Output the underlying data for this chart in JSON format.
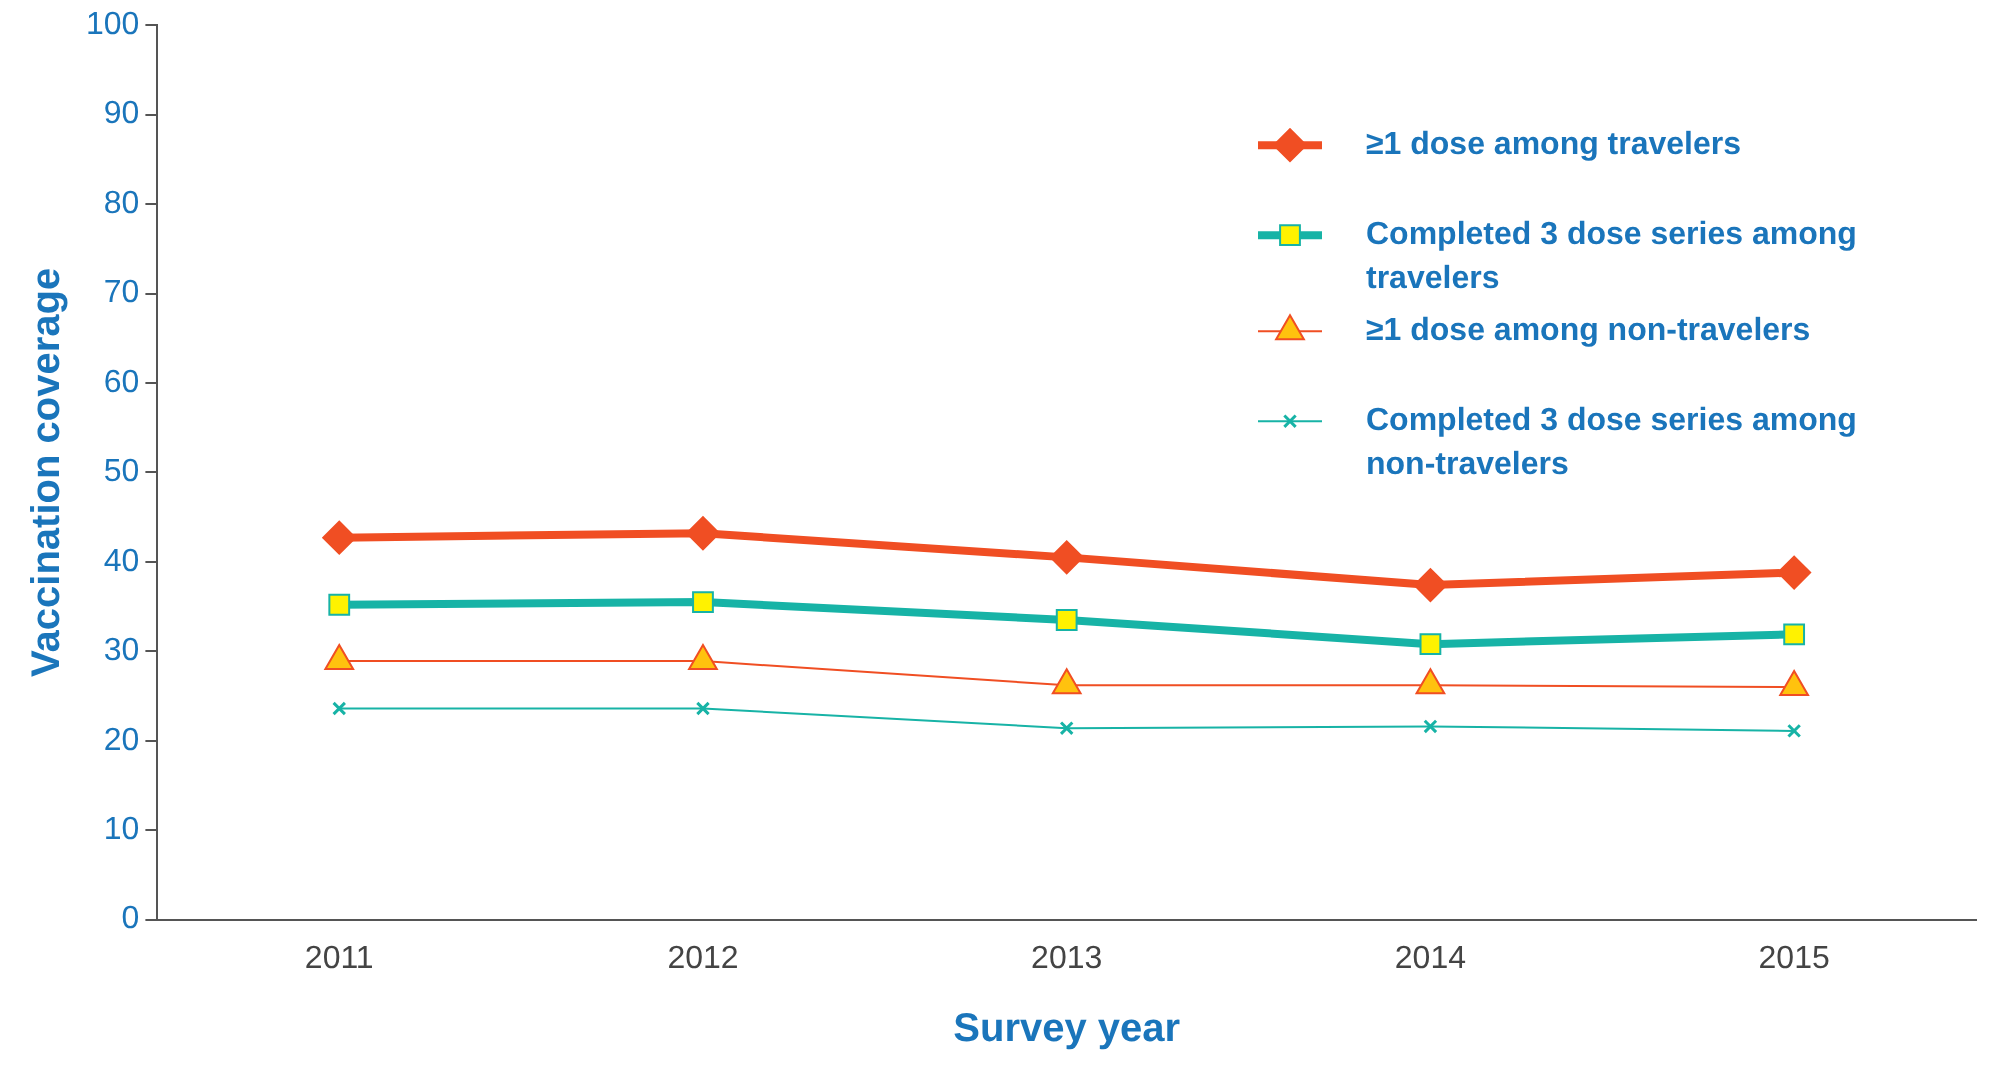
{
  "chart_data": {
    "type": "line",
    "xlabel": "Survey year",
    "ylabel": "Vaccination coverage",
    "categories": [
      "2011",
      "2012",
      "2013",
      "2014",
      "2015"
    ],
    "ylim": [
      0,
      100
    ],
    "yticks": [
      0,
      10,
      20,
      30,
      40,
      50,
      60,
      70,
      80,
      90,
      100
    ],
    "grid": false,
    "legend": "top right",
    "series": [
      {
        "name": "≥1 dose among travelers",
        "color": "#f04e23",
        "marker": "diamond",
        "values": [
          42.7,
          43.2,
          40.5,
          37.4,
          38.8
        ]
      },
      {
        "name": "Completed 3 dose series among travelers",
        "color": "#17b3a6",
        "colors": [
          "#fff200",
          "#fff200",
          "#fff200",
          "#fff200",
          "#fff200"
        ],
        "marker": "square",
        "values": [
          35.2,
          35.5,
          33.5,
          30.8,
          31.9
        ]
      },
      {
        "name": "≥1 dose among non-travelers",
        "color": "#f04e23",
        "colors": [
          "#ffc20e",
          "#ffc20e",
          "#ffc20e",
          "#ffc20e",
          "#ffc20e"
        ],
        "marker": "triangle",
        "values": [
          28.9,
          28.9,
          26.2,
          26.2,
          26.0
        ]
      },
      {
        "name": "Completed 3 dose series among non-travelers",
        "color": "#17b3a6",
        "marker": "cross",
        "values": [
          23.6,
          23.6,
          21.4,
          21.6,
          21.1
        ]
      }
    ]
  }
}
